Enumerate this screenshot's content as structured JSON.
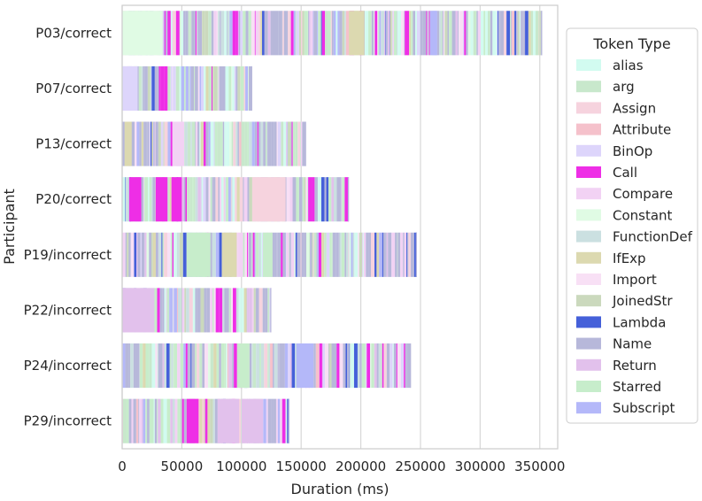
{
  "chart_data": {
    "type": "bar",
    "orientation": "horizontal-stacked-timeline",
    "title": "",
    "xlabel": "Duration (ms)",
    "ylabel": "Participant",
    "xlim": [
      0,
      365000
    ],
    "xticks": [
      0,
      50000,
      100000,
      150000,
      200000,
      250000,
      300000,
      350000
    ],
    "xtick_labels": [
      "0",
      "50000",
      "100000",
      "150000",
      "200000",
      "250000",
      "300000",
      "350000"
    ],
    "grid": true,
    "legend_title": "Token Type",
    "legend_position": "right",
    "token_types": [
      {
        "name": "alias",
        "color": "#d2fbf0"
      },
      {
        "name": "arg",
        "color": "#c8e8cc"
      },
      {
        "name": "Assign",
        "color": "#f6d3de"
      },
      {
        "name": "Attribute",
        "color": "#f5c1cb"
      },
      {
        "name": "BinOp",
        "color": "#ddd5fb"
      },
      {
        "name": "Call",
        "color": "#ee2ee6"
      },
      {
        "name": "Compare",
        "color": "#f2d2f4"
      },
      {
        "name": "Constant",
        "color": "#e0fbe4"
      },
      {
        "name": "FunctionDef",
        "color": "#cbe0e1"
      },
      {
        "name": "IfExp",
        "color": "#dcd9b0"
      },
      {
        "name": "Import",
        "color": "#f8e0f5"
      },
      {
        "name": "JoinedStr",
        "color": "#cbd9bd"
      },
      {
        "name": "Lambda",
        "color": "#4560d9"
      },
      {
        "name": "Name",
        "color": "#b7b8da"
      },
      {
        "name": "Return",
        "color": "#e2c1ec"
      },
      {
        "name": "Starred",
        "color": "#c7edcb"
      },
      {
        "name": "Subscript",
        "color": "#b4b8f9"
      }
    ],
    "participants": [
      {
        "name": "P03/correct",
        "duration": 352000,
        "segments": [
          {
            "type": "Constant",
            "start": 0,
            "end": 34000
          },
          {
            "type": "IfExp",
            "start": 190000,
            "end": 203000
          },
          {
            "type": "Subscript",
            "start": 258000,
            "end": 264000
          }
        ]
      },
      {
        "name": "P07/correct",
        "duration": 109000,
        "segments": [
          {
            "type": "BinOp",
            "start": 0,
            "end": 13000
          }
        ]
      },
      {
        "name": "P13/correct",
        "duration": 154000,
        "segments": [
          {
            "type": "IfExp",
            "start": 2000,
            "end": 8000
          },
          {
            "type": "Compare",
            "start": 42000,
            "end": 52000
          }
        ]
      },
      {
        "name": "P20/correct",
        "duration": 190000,
        "segments": [
          {
            "type": "Call",
            "start": 6000,
            "end": 16000
          },
          {
            "type": "Call",
            "start": 28000,
            "end": 38000
          },
          {
            "type": "Call",
            "start": 42000,
            "end": 50000
          },
          {
            "type": "Assign",
            "start": 109000,
            "end": 137000
          }
        ]
      },
      {
        "name": "P19/incorrect",
        "duration": 247000,
        "segments": [
          {
            "type": "Starred",
            "start": 54000,
            "end": 74000
          },
          {
            "type": "IfExp",
            "start": 85000,
            "end": 96000
          },
          {
            "type": "Starred",
            "start": 118000,
            "end": 126000
          }
        ]
      },
      {
        "name": "P22/incorrect",
        "duration": 125000,
        "segments": [
          {
            "type": "Return",
            "start": 0,
            "end": 27000
          }
        ]
      },
      {
        "name": "P24/incorrect",
        "duration": 242000,
        "segments": [
          {
            "type": "Subscript",
            "start": 146000,
            "end": 160000
          },
          {
            "type": "Starred",
            "start": 98000,
            "end": 106000
          }
        ]
      },
      {
        "name": "P29/incorrect",
        "duration": 140000,
        "segments": [
          {
            "type": "Call",
            "start": 54000,
            "end": 64000
          },
          {
            "type": "Return",
            "start": 80000,
            "end": 98000
          },
          {
            "type": "Return",
            "start": 100000,
            "end": 118000
          }
        ]
      }
    ]
  }
}
